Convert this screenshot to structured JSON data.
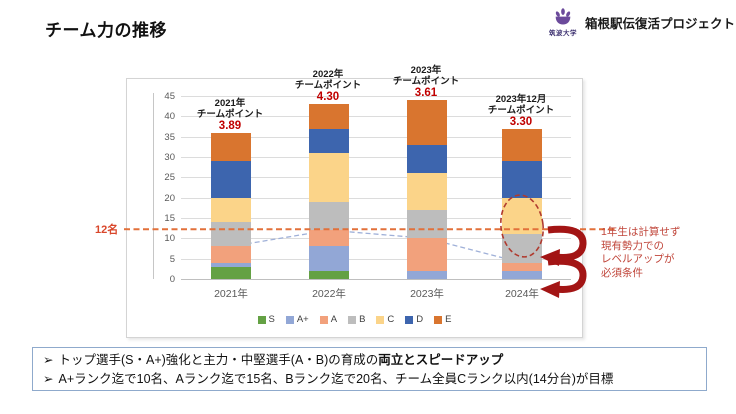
{
  "header": {
    "title": "チーム力の推移"
  },
  "logo": {
    "university": "筑波大学",
    "project": "箱根駅伝復活プロジェクト"
  },
  "chart_data": {
    "type": "bar",
    "stacked": true,
    "title": "",
    "xlabel": "",
    "ylabel": "",
    "categories": [
      "2021年",
      "2022年",
      "2023年",
      "2024年"
    ],
    "series": [
      {
        "name": "S",
        "color": "#64a144",
        "values": [
          3,
          2,
          0,
          0
        ]
      },
      {
        "name": "A+",
        "color": "#92a7d6",
        "values": [
          1,
          6,
          2,
          2
        ]
      },
      {
        "name": "A",
        "color": "#f2a17c",
        "values": [
          4,
          4,
          8,
          2
        ]
      },
      {
        "name": "B",
        "color": "#bdbdbd",
        "values": [
          6,
          7,
          7,
          7
        ]
      },
      {
        "name": "C",
        "color": "#fbd489",
        "values": [
          6,
          12,
          9,
          9
        ]
      },
      {
        "name": "D",
        "color": "#3d65ae",
        "values": [
          9,
          6,
          7,
          9
        ]
      },
      {
        "name": "E",
        "color": "#d9752f",
        "values": [
          7,
          6,
          11,
          8
        ]
      }
    ],
    "ylim": [
      0,
      45
    ],
    "ytick_step": 5,
    "grid": true,
    "legend_position": "bottom-inside",
    "trend_line": {
      "style": "dashed",
      "color": "#9fb0d8",
      "values": [
        8,
        12,
        10,
        4
      ]
    },
    "reference_line": {
      "label": "12名",
      "value": 12,
      "color": "#e2703a"
    },
    "annotations": [
      {
        "line1": "2021年",
        "line2": "チームポイント",
        "value": "3.89"
      },
      {
        "line1": "2022年",
        "line2": "チームポイント",
        "value": "4.30"
      },
      {
        "line1": "2023年",
        "line2": "チームポイント",
        "value": "3.61"
      },
      {
        "line1": "2023年12月",
        "line2": "チームポイント",
        "value": "3.30"
      }
    ]
  },
  "overlay": {
    "note_lines": [
      "1年生は計算せず",
      "現有勢力での",
      "レベルアップが",
      "必須条件"
    ],
    "note_color": "#c0453a",
    "ellipse_color": "#b03a2e",
    "arrow_color": "#a31515"
  },
  "footer_box": {
    "items": [
      {
        "bullet": "➢",
        "text": "トップ選手(S・A+)強化と主力・中堅選手(A・B)の育成の",
        "bold": "両立とスピードアップ"
      },
      {
        "bullet": "➢",
        "text": "A+ランク迄で10名、Aランク迄で15名、Bランク迄で20名、チーム全員Cランク以内(14分台)が目標",
        "bold": ""
      }
    ]
  },
  "colors": {
    "value_red": "#c00000",
    "annotation_text": "#1a1a1a",
    "axis_label": "#595959",
    "gridline": "#dcdcdc",
    "frame_border": "#d4d4d4",
    "reference_label": "#d9472b",
    "footer_border": "#8faacc",
    "emblem_purple": "#6b4a9b"
  }
}
